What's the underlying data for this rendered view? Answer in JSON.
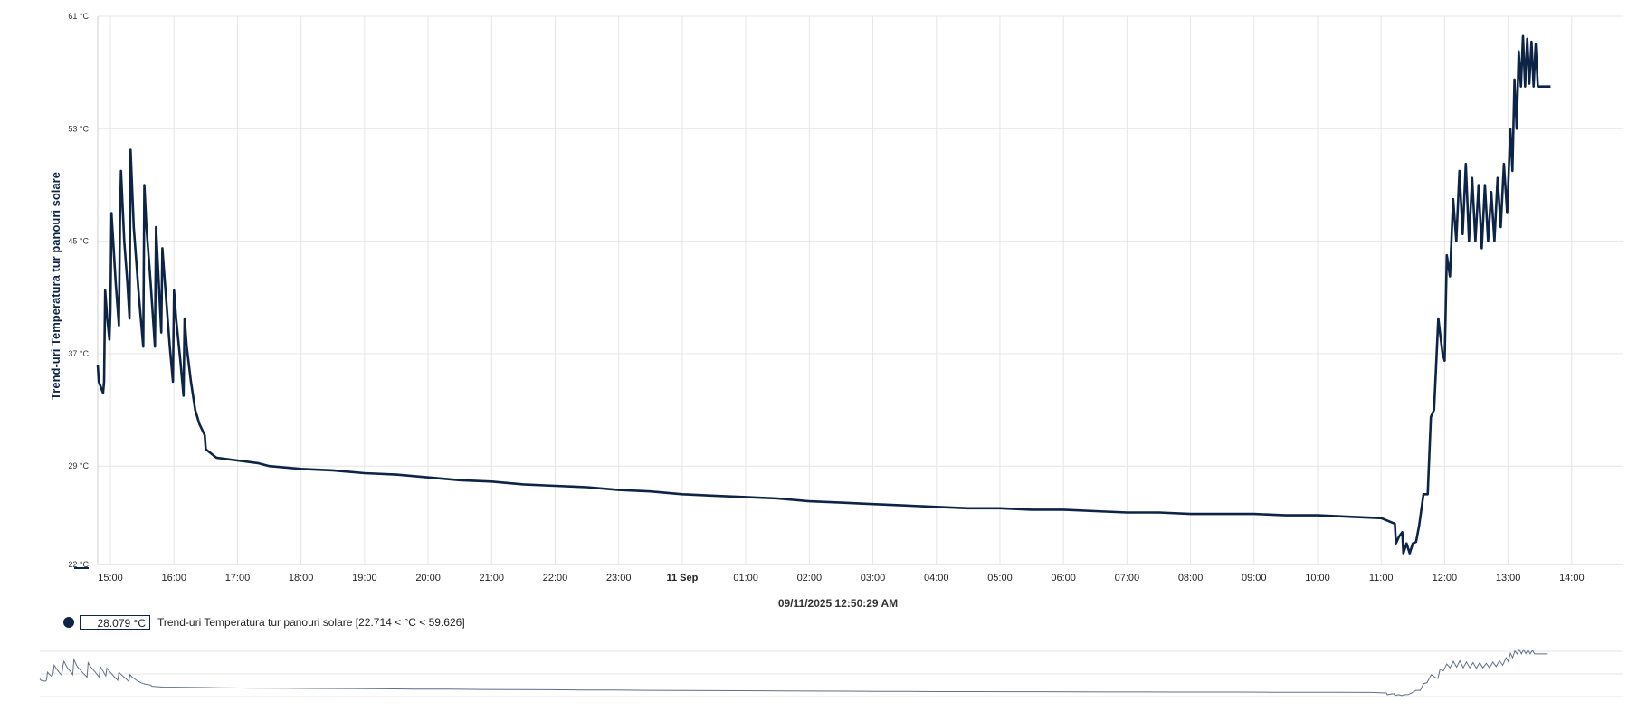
{
  "chart_data": {
    "type": "line",
    "ylabel": "Trend-uri Temperatura tur panouri solare",
    "y_unit": "°C",
    "ylim": [
      22,
      61
    ],
    "y_ticks": [
      {
        "value": 22,
        "label": "22 °C"
      },
      {
        "value": 29,
        "label": "29 °C"
      },
      {
        "value": 37,
        "label": "37 °C"
      },
      {
        "value": 45,
        "label": "45 °C"
      },
      {
        "value": 53,
        "label": "53 °C"
      },
      {
        "value": 61,
        "label": "61 °C"
      }
    ],
    "xlim": [
      "2025-09-10 14:48",
      "2025-09-11 14:48"
    ],
    "x_ticks": [
      {
        "time": "2025-09-10 15:00",
        "label": "15:00",
        "bold": false
      },
      {
        "time": "2025-09-10 16:00",
        "label": "16:00",
        "bold": false
      },
      {
        "time": "2025-09-10 17:00",
        "label": "17:00",
        "bold": false
      },
      {
        "time": "2025-09-10 18:00",
        "label": "18:00",
        "bold": false
      },
      {
        "time": "2025-09-10 19:00",
        "label": "19:00",
        "bold": false
      },
      {
        "time": "2025-09-10 20:00",
        "label": "20:00",
        "bold": false
      },
      {
        "time": "2025-09-10 21:00",
        "label": "21:00",
        "bold": false
      },
      {
        "time": "2025-09-10 22:00",
        "label": "22:00",
        "bold": false
      },
      {
        "time": "2025-09-10 23:00",
        "label": "23:00",
        "bold": false
      },
      {
        "time": "2025-09-11 00:00",
        "label": "11 Sep",
        "bold": true
      },
      {
        "time": "2025-09-11 01:00",
        "label": "01:00",
        "bold": false
      },
      {
        "time": "2025-09-11 02:00",
        "label": "02:00",
        "bold": false
      },
      {
        "time": "2025-09-11 03:00",
        "label": "03:00",
        "bold": false
      },
      {
        "time": "2025-09-11 04:00",
        "label": "04:00",
        "bold": false
      },
      {
        "time": "2025-09-11 05:00",
        "label": "05:00",
        "bold": false
      },
      {
        "time": "2025-09-11 06:00",
        "label": "06:00",
        "bold": false
      },
      {
        "time": "2025-09-11 07:00",
        "label": "07:00",
        "bold": false
      },
      {
        "time": "2025-09-11 08:00",
        "label": "08:00",
        "bold": false
      },
      {
        "time": "2025-09-11 09:00",
        "label": "09:00",
        "bold": false
      },
      {
        "time": "2025-09-11 10:00",
        "label": "10:00",
        "bold": false
      },
      {
        "time": "2025-09-11 11:00",
        "label": "11:00",
        "bold": false
      },
      {
        "time": "2025-09-11 12:00",
        "label": "12:00",
        "bold": false
      },
      {
        "time": "2025-09-11 13:00",
        "label": "13:00",
        "bold": false
      },
      {
        "time": "2025-09-11 14:00",
        "label": "14:00",
        "bold": false
      }
    ],
    "grid": true,
    "cursor_time": "09/11/2025 12:50:29 AM",
    "series": [
      {
        "name": "Trend-uri Temperatura tur panouri solare [22.714 < °C < 59.626]",
        "current_value": "28.079 °C",
        "color": "#0d2447",
        "points": [
          [
            "2025-09-10 14:48",
            36.2
          ],
          [
            "2025-09-10 14:49",
            35.0
          ],
          [
            "2025-09-10 14:53",
            34.2
          ],
          [
            "2025-09-10 14:54",
            35.0
          ],
          [
            "2025-09-10 14:55",
            41.5
          ],
          [
            "2025-09-10 14:57",
            39.5
          ],
          [
            "2025-09-10 14:59",
            38.0
          ],
          [
            "2025-09-10 15:00",
            40.0
          ],
          [
            "2025-09-10 15:01",
            47.0
          ],
          [
            "2025-09-10 15:05",
            42.0
          ],
          [
            "2025-09-10 15:08",
            39.0
          ],
          [
            "2025-09-10 15:09",
            46.5
          ],
          [
            "2025-09-10 15:10",
            50.0
          ],
          [
            "2025-09-10 15:13",
            45.0
          ],
          [
            "2025-09-10 15:16",
            42.0
          ],
          [
            "2025-09-10 15:18",
            39.5
          ],
          [
            "2025-09-10 15:19",
            51.5
          ],
          [
            "2025-09-10 15:22",
            46.0
          ],
          [
            "2025-09-10 15:27",
            41.0
          ],
          [
            "2025-09-10 15:31",
            37.5
          ],
          [
            "2025-09-10 15:32",
            49.0
          ],
          [
            "2025-09-10 15:34",
            46.0
          ],
          [
            "2025-09-10 15:38",
            42.0
          ],
          [
            "2025-09-10 15:42",
            37.5
          ],
          [
            "2025-09-10 15:43",
            46.0
          ],
          [
            "2025-09-10 15:45",
            43.0
          ],
          [
            "2025-09-10 15:48",
            38.5
          ],
          [
            "2025-09-10 15:49",
            44.5
          ],
          [
            "2025-09-10 15:51",
            42.5
          ],
          [
            "2025-09-10 15:56",
            37.5
          ],
          [
            "2025-09-10 15:59",
            35.0
          ],
          [
            "2025-09-10 16:00",
            41.5
          ],
          [
            "2025-09-10 16:02",
            39.5
          ],
          [
            "2025-09-10 16:06",
            36.5
          ],
          [
            "2025-09-10 16:09",
            34.0
          ],
          [
            "2025-09-10 16:10",
            39.5
          ],
          [
            "2025-09-10 16:12",
            37.5
          ],
          [
            "2025-09-10 16:16",
            35.0
          ],
          [
            "2025-09-10 16:20",
            33.0
          ],
          [
            "2025-09-10 16:24",
            32.0
          ],
          [
            "2025-09-10 16:29",
            31.2
          ],
          [
            "2025-09-10 16:30",
            30.2
          ],
          [
            "2025-09-10 16:40",
            29.6
          ],
          [
            "2025-09-10 17:00",
            29.4
          ],
          [
            "2025-09-10 17:20",
            29.2
          ],
          [
            "2025-09-10 17:30",
            29.0
          ],
          [
            "2025-09-10 18:00",
            28.8
          ],
          [
            "2025-09-10 18:30",
            28.7
          ],
          [
            "2025-09-10 19:00",
            28.5
          ],
          [
            "2025-09-10 19:30",
            28.4
          ],
          [
            "2025-09-10 20:00",
            28.2
          ],
          [
            "2025-09-10 20:30",
            28.0
          ],
          [
            "2025-09-10 21:00",
            27.9
          ],
          [
            "2025-09-10 21:30",
            27.7
          ],
          [
            "2025-09-10 22:00",
            27.6
          ],
          [
            "2025-09-10 22:30",
            27.5
          ],
          [
            "2025-09-10 23:00",
            27.3
          ],
          [
            "2025-09-10 23:30",
            27.2
          ],
          [
            "2025-09-11 00:00",
            27.0
          ],
          [
            "2025-09-11 00:30",
            26.9
          ],
          [
            "2025-09-11 01:00",
            26.8
          ],
          [
            "2025-09-11 01:30",
            26.7
          ],
          [
            "2025-09-11 02:00",
            26.5
          ],
          [
            "2025-09-11 02:30",
            26.4
          ],
          [
            "2025-09-11 03:00",
            26.3
          ],
          [
            "2025-09-11 03:30",
            26.2
          ],
          [
            "2025-09-11 04:00",
            26.1
          ],
          [
            "2025-09-11 04:30",
            26.0
          ],
          [
            "2025-09-11 05:00",
            26.0
          ],
          [
            "2025-09-11 05:30",
            25.9
          ],
          [
            "2025-09-11 06:00",
            25.9
          ],
          [
            "2025-09-11 06:30",
            25.8
          ],
          [
            "2025-09-11 07:00",
            25.7
          ],
          [
            "2025-09-11 07:30",
            25.7
          ],
          [
            "2025-09-11 08:00",
            25.6
          ],
          [
            "2025-09-11 08:30",
            25.6
          ],
          [
            "2025-09-11 09:00",
            25.6
          ],
          [
            "2025-09-11 09:30",
            25.5
          ],
          [
            "2025-09-11 10:00",
            25.5
          ],
          [
            "2025-09-11 10:30",
            25.4
          ],
          [
            "2025-09-11 11:00",
            25.3
          ],
          [
            "2025-09-11 11:13",
            24.9
          ],
          [
            "2025-09-11 11:14",
            23.5
          ],
          [
            "2025-09-11 11:17",
            24.0
          ],
          [
            "2025-09-11 11:20",
            24.3
          ],
          [
            "2025-09-11 11:21",
            22.8
          ],
          [
            "2025-09-11 11:24",
            23.5
          ],
          [
            "2025-09-11 11:27",
            22.8
          ],
          [
            "2025-09-11 11:30",
            23.5
          ],
          [
            "2025-09-11 11:33",
            23.6
          ],
          [
            "2025-09-11 11:36",
            24.8
          ],
          [
            "2025-09-11 11:40",
            27.0
          ],
          [
            "2025-09-11 11:44",
            27.0
          ],
          [
            "2025-09-11 11:47",
            32.5
          ],
          [
            "2025-09-11 11:50",
            33.0
          ],
          [
            "2025-09-11 11:54",
            39.5
          ],
          [
            "2025-09-11 11:58",
            37.0
          ],
          [
            "2025-09-11 12:00",
            36.5
          ],
          [
            "2025-09-11 12:02",
            44.0
          ],
          [
            "2025-09-11 12:05",
            42.5
          ],
          [
            "2025-09-11 12:08",
            48.0
          ],
          [
            "2025-09-11 12:11",
            45.0
          ],
          [
            "2025-09-11 12:14",
            50.0
          ],
          [
            "2025-09-11 12:17",
            45.5
          ],
          [
            "2025-09-11 12:20",
            50.5
          ],
          [
            "2025-09-11 12:23",
            45.0
          ],
          [
            "2025-09-11 12:26",
            49.5
          ],
          [
            "2025-09-11 12:29",
            45.0
          ],
          [
            "2025-09-11 12:32",
            49.0
          ],
          [
            "2025-09-11 12:35",
            44.5
          ],
          [
            "2025-09-11 12:38",
            49.0
          ],
          [
            "2025-09-11 12:41",
            45.0
          ],
          [
            "2025-09-11 12:44",
            48.5
          ],
          [
            "2025-09-11 12:47",
            45.0
          ],
          [
            "2025-09-11 12:50",
            49.5
          ],
          [
            "2025-09-11 12:53",
            46.0
          ],
          [
            "2025-09-11 12:56",
            50.5
          ],
          [
            "2025-09-11 12:59",
            47.0
          ],
          [
            "2025-09-11 13:02",
            53.0
          ],
          [
            "2025-09-11 13:04",
            50.0
          ],
          [
            "2025-09-11 13:06",
            56.5
          ],
          [
            "2025-09-11 13:08",
            53.0
          ],
          [
            "2025-09-11 13:10",
            58.5
          ],
          [
            "2025-09-11 13:12",
            56.0
          ],
          [
            "2025-09-11 13:14",
            59.6
          ],
          [
            "2025-09-11 13:16",
            56.0
          ],
          [
            "2025-09-11 13:18",
            59.4
          ],
          [
            "2025-09-11 13:20",
            56.2
          ],
          [
            "2025-09-11 13:22",
            59.2
          ],
          [
            "2025-09-11 13:24",
            56.0
          ],
          [
            "2025-09-11 13:26",
            59.0
          ],
          [
            "2025-09-11 13:28",
            56.0
          ],
          [
            "2025-09-11 13:40",
            56.0
          ]
        ]
      }
    ]
  }
}
